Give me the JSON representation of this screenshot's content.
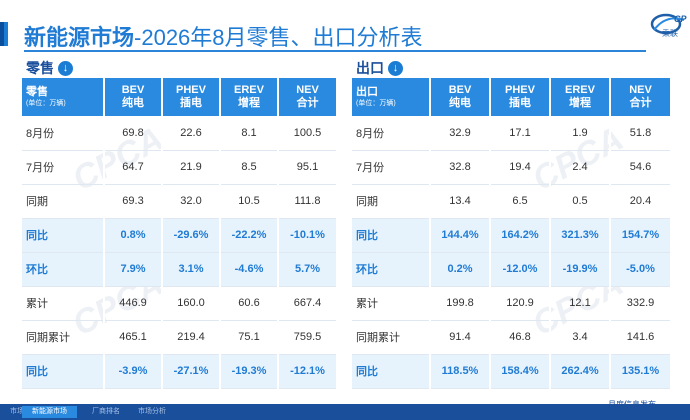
{
  "header": {
    "title_main": "新能源市场",
    "title_sub": "-2026年8月零售、出口分析表",
    "logo_text": "乘联"
  },
  "retail": {
    "section_label": "零售",
    "header_label": "零售",
    "unit": "(单位：万辆)",
    "columns": [
      {
        "line1": "BEV",
        "line2": "纯电"
      },
      {
        "line1": "PHEV",
        "line2": "插电"
      },
      {
        "line1": "EREV",
        "line2": "增程"
      },
      {
        "line1": "NEV",
        "line2": "合计"
      }
    ],
    "rows": [
      {
        "label": "8月份",
        "values": [
          "69.8",
          "22.6",
          "8.1",
          "100.5"
        ]
      },
      {
        "label": "7月份",
        "values": [
          "64.7",
          "21.9",
          "8.5",
          "95.1"
        ]
      },
      {
        "label": "同期",
        "values": [
          "69.3",
          "32.0",
          "10.5",
          "111.8"
        ]
      },
      {
        "label": "同比",
        "values": [
          "0.8%",
          "-29.6%",
          "-22.2%",
          "-10.1%"
        ]
      },
      {
        "label": "环比",
        "values": [
          "7.9%",
          "3.1%",
          "-4.6%",
          "5.7%"
        ]
      },
      {
        "label": "累计",
        "values": [
          "446.9",
          "160.0",
          "60.6",
          "667.4"
        ]
      },
      {
        "label": "同期累计",
        "values": [
          "465.1",
          "219.4",
          "75.1",
          "759.5"
        ]
      },
      {
        "label": "同比",
        "values": [
          "-3.9%",
          "-27.1%",
          "-19.3%",
          "-12.1%"
        ]
      }
    ]
  },
  "export": {
    "section_label": "出口",
    "header_label": "出口",
    "unit": "(单位：万辆)",
    "columns": [
      {
        "line1": "BEV",
        "line2": "纯电"
      },
      {
        "line1": "PHEV",
        "line2": "插电"
      },
      {
        "line1": "EREV",
        "line2": "增程"
      },
      {
        "line1": "NEV",
        "line2": "合计"
      }
    ],
    "rows": [
      {
        "label": "8月份",
        "values": [
          "32.9",
          "17.1",
          "1.9",
          "51.8"
        ]
      },
      {
        "label": "7月份",
        "values": [
          "32.8",
          "19.4",
          "2.4",
          "54.6"
        ]
      },
      {
        "label": "同期",
        "values": [
          "13.4",
          "6.5",
          "0.5",
          "20.4"
        ]
      },
      {
        "label": "同比",
        "values": [
          "144.4%",
          "164.2%",
          "321.3%",
          "154.7%"
        ]
      },
      {
        "label": "环比",
        "values": [
          "0.2%",
          "-12.0%",
          "-19.9%",
          "-5.0%"
        ]
      },
      {
        "label": "累计",
        "values": [
          "199.8",
          "120.9",
          "12.1",
          "332.9"
        ]
      },
      {
        "label": "同期累计",
        "values": [
          "91.4",
          "46.8",
          "3.4",
          "141.6"
        ]
      },
      {
        "label": "同比",
        "values": [
          "118.5%",
          "158.4%",
          "262.4%",
          "135.1%"
        ]
      }
    ]
  },
  "highlight_rows": [
    3,
    4,
    7
  ],
  "footer": {
    "tabs": [
      "市场",
      "新能源市场",
      "厂商排名",
      "市场分析"
    ],
    "active_tab": 1,
    "right_text": "月度信息发布"
  },
  "colors": {
    "accent": "#1f7bd4",
    "header_fill": "#2a8ae0",
    "highlight_row": "#e6f3fd",
    "footer": "#1a4f9c"
  }
}
